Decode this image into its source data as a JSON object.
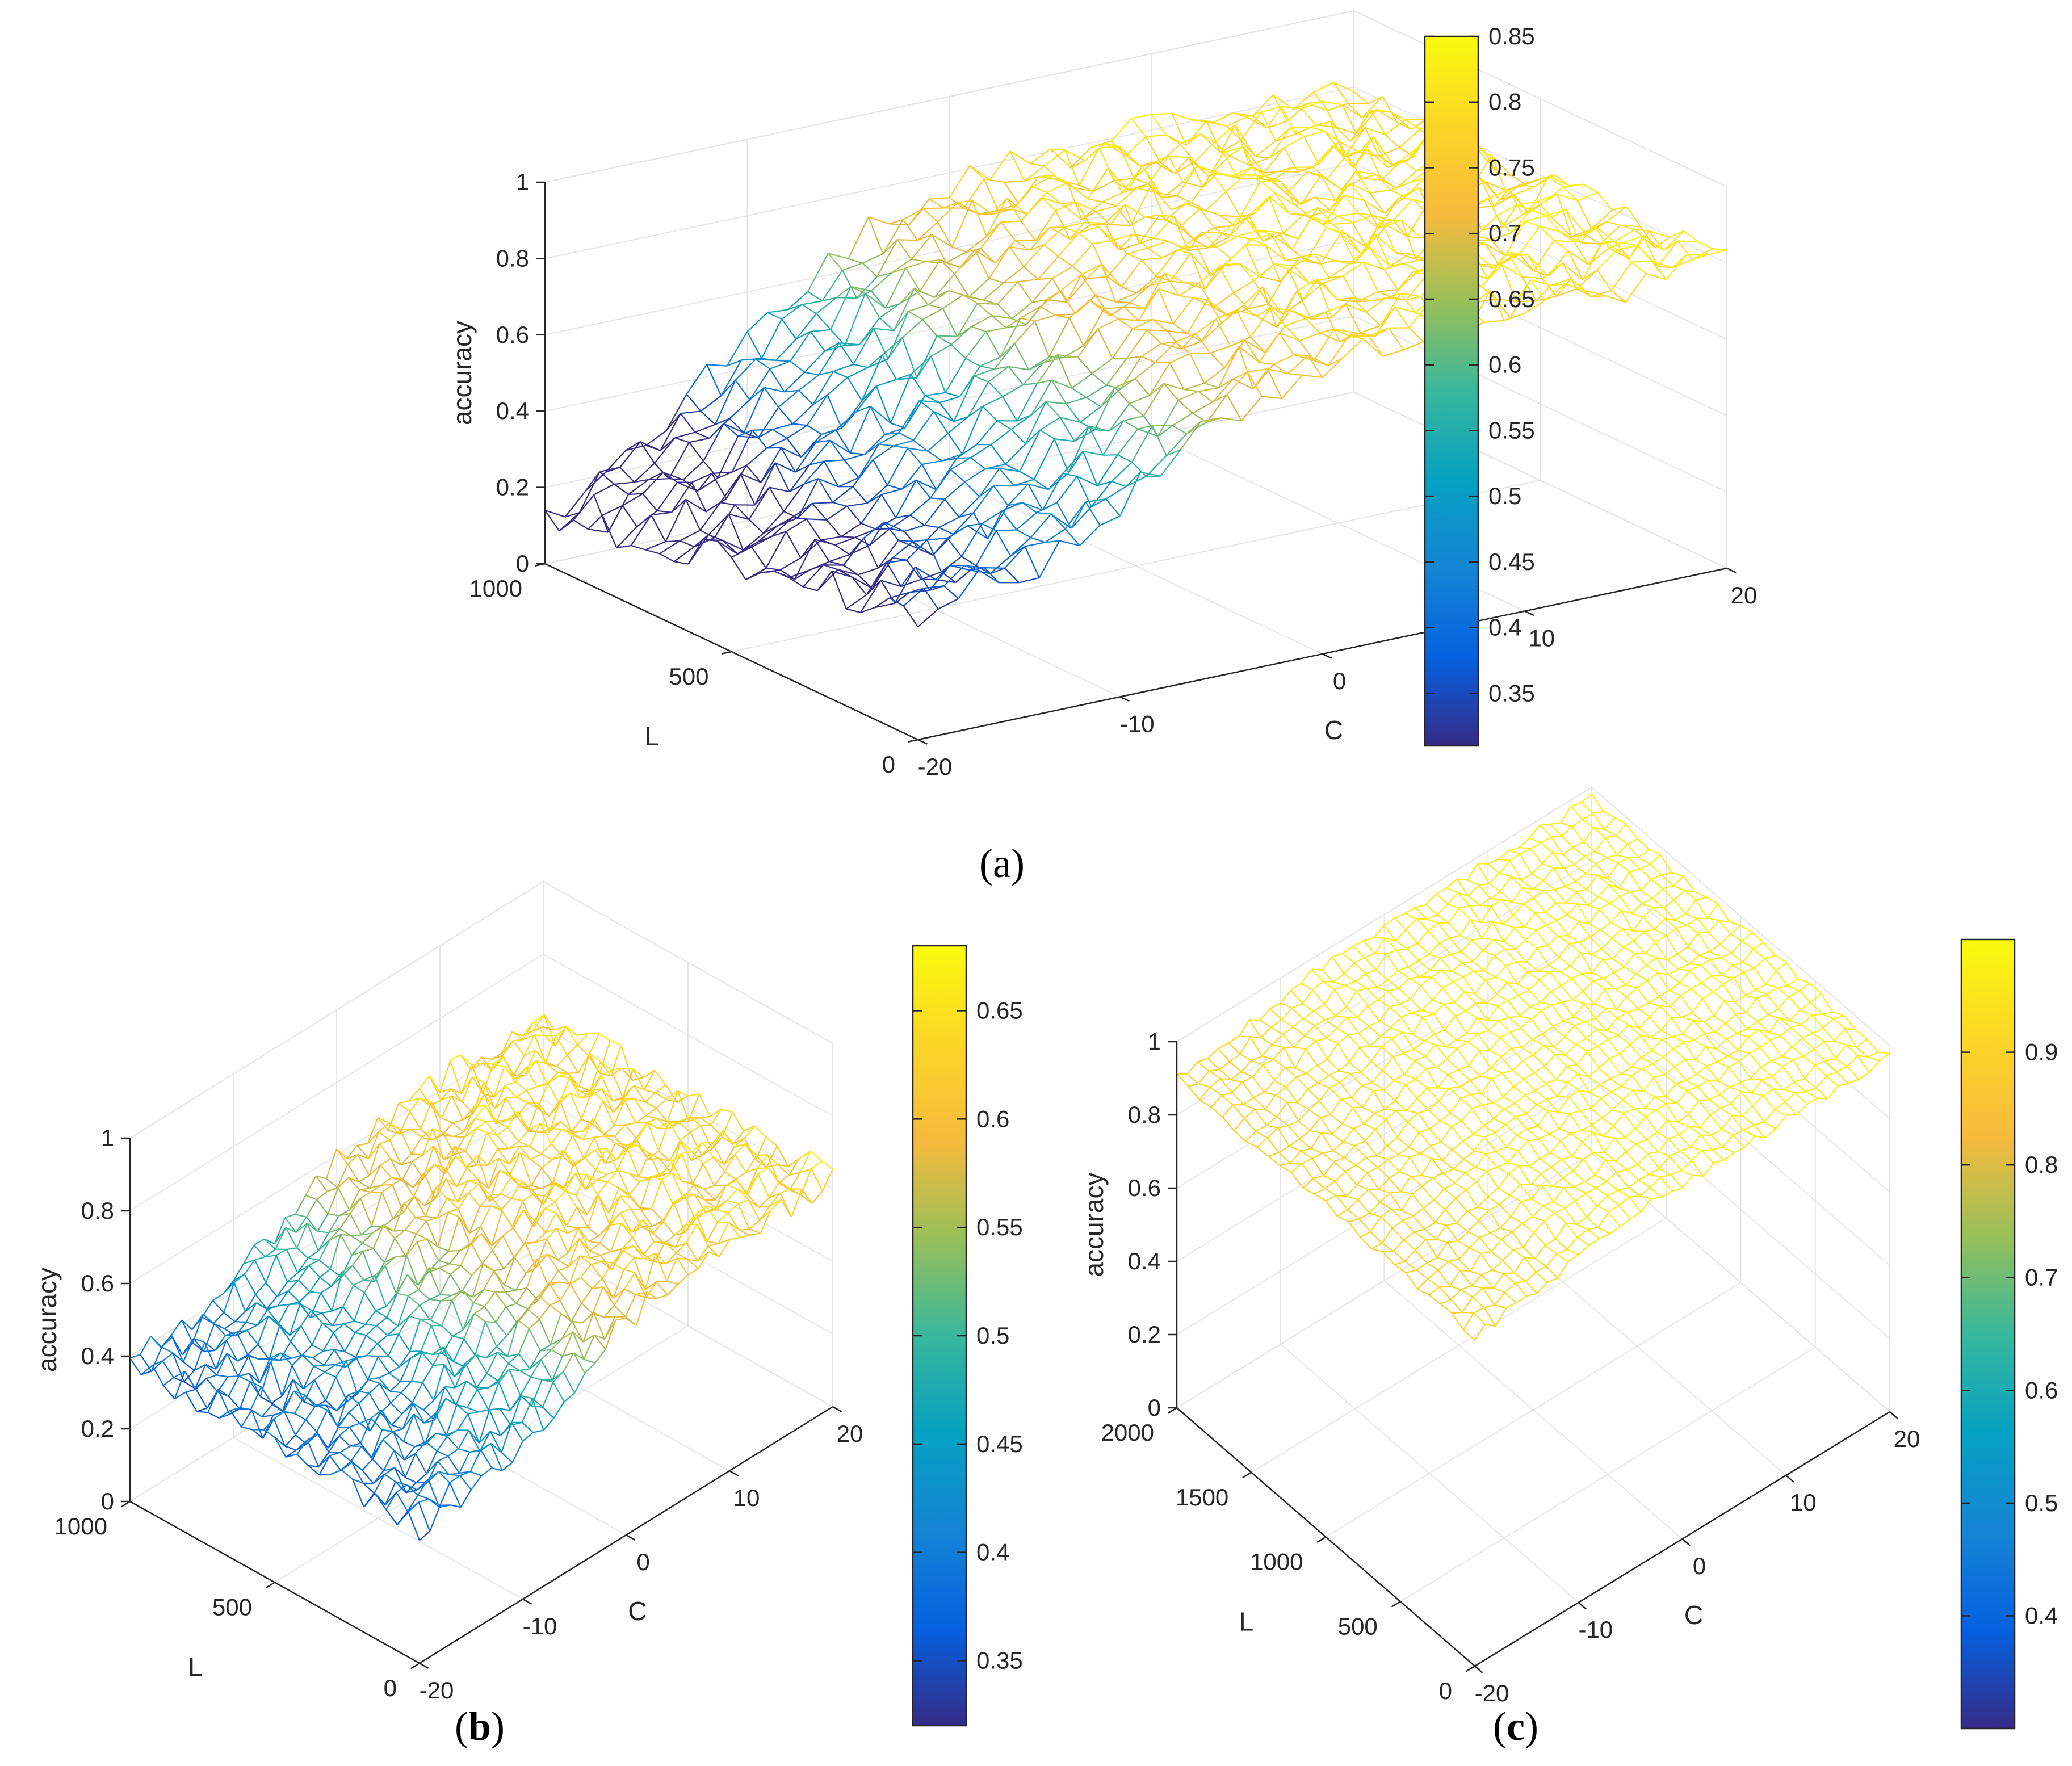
{
  "chart_data": [
    {
      "type": "surface",
      "panel_label": "a",
      "caption": "(a)",
      "zlabel": "accuracy",
      "xlabel": "C",
      "ylabel": "L",
      "xlim": [
        -20,
        20
      ],
      "ylim": [
        0,
        1000
      ],
      "zlim": [
        0,
        1
      ],
      "xticks": [
        "-20",
        "-10",
        "0",
        "10",
        "20"
      ],
      "yticks": [
        "0",
        "500",
        "1000"
      ],
      "zticks": [
        "0",
        "0.2",
        "0.4",
        "0.6",
        "0.8",
        "1"
      ],
      "colorbar": {
        "min": 0.31,
        "max": 0.85,
        "ticks": [
          "0.35",
          "0.4",
          "0.45",
          "0.5",
          "0.55",
          "0.6",
          "0.65",
          "0.7",
          "0.75",
          "0.8",
          "0.85"
        ]
      },
      "surface_profile": {
        "low_C_value": 0.33,
        "plateau_value": 0.8,
        "rise_center_C": -8,
        "rise_width": 3.5,
        "high_L_drop": 0.3,
        "drop_width_C": 3,
        "noise": 0.05
      }
    },
    {
      "type": "surface",
      "panel_label": "b",
      "caption_prefix": "(",
      "caption_suffix": ")",
      "zlabel": "accuracy",
      "xlabel": "C",
      "ylabel": "L",
      "xlim": [
        -20,
        20
      ],
      "ylim": [
        0,
        1000
      ],
      "zlim": [
        0,
        1
      ],
      "xticks": [
        "-20",
        "-10",
        "0",
        "10",
        "20"
      ],
      "yticks": [
        "0",
        "500",
        "1000"
      ],
      "zticks": [
        "0",
        "0.2",
        "0.4",
        "0.6",
        "0.8",
        "1"
      ],
      "colorbar": {
        "min": 0.32,
        "max": 0.68,
        "ticks": [
          "0.35",
          "0.4",
          "0.45",
          "0.5",
          "0.55",
          "0.6",
          "0.65"
        ]
      },
      "surface_profile": {
        "low_C_value": 0.37,
        "plateau_value": 0.63,
        "rise_center_C": -6,
        "rise_width": 4,
        "high_L_drop": 0.0,
        "drop_width_C": 3,
        "noise": 0.04
      }
    },
    {
      "type": "surface",
      "panel_label": "c",
      "caption_prefix": "(",
      "caption_suffix": ")",
      "zlabel": "accuracy",
      "xlabel": "C",
      "ylabel": "L",
      "xlim": [
        -20,
        20
      ],
      "ylim": [
        0,
        2000
      ],
      "zlim": [
        0,
        1
      ],
      "xticks": [
        "-20",
        "-10",
        "0",
        "10",
        "20"
      ],
      "yticks": [
        "0",
        "500",
        "1000",
        "1500",
        "2000"
      ],
      "zticks": [
        "0",
        "0.2",
        "0.4",
        "0.6",
        "0.8",
        "1"
      ],
      "colorbar": {
        "min": 0.3,
        "max": 1.0,
        "ticks": [
          "0.4",
          "0.5",
          "0.6",
          "0.7",
          "0.8",
          "0.9"
        ]
      },
      "surface_profile": {
        "low_C_value": 0.9,
        "plateau_value": 0.97,
        "rise_center_C": -12,
        "rise_width": 3,
        "high_L_drop": 0.0,
        "drop_width_C": 3,
        "noise": 0.015
      }
    }
  ]
}
